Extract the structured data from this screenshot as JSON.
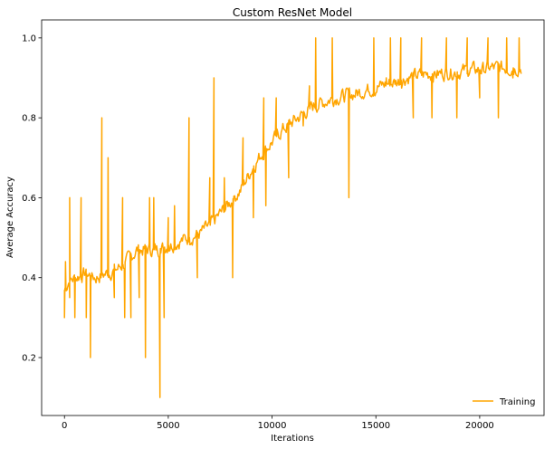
{
  "chart_data": {
    "type": "line",
    "title": "Custom ResNet Model",
    "xlabel": "Iterations",
    "ylabel": "Average Accuracy",
    "xlim": [
      -1100,
      23100
    ],
    "ylim": [
      0.055,
      1.045
    ],
    "xticks": [
      0,
      5000,
      10000,
      15000,
      20000
    ],
    "yticks": [
      0.2,
      0.4,
      0.6,
      0.8,
      1.0
    ],
    "xtick_labels": [
      "0",
      "5000",
      "10000",
      "15000",
      "20000"
    ],
    "ytick_labels": [
      "0.2",
      "0.4",
      "0.6",
      "0.8",
      "1.0"
    ],
    "grid": false,
    "legend_position": "bottom-right",
    "series": [
      {
        "name": "Training",
        "color": "#ffa500",
        "baseline": [
          [
            0,
            0.37
          ],
          [
            200,
            0.39
          ],
          [
            500,
            0.4
          ],
          [
            1000,
            0.41
          ],
          [
            1500,
            0.4
          ],
          [
            2000,
            0.41
          ],
          [
            2500,
            0.42
          ],
          [
            3000,
            0.44
          ],
          [
            3500,
            0.47
          ],
          [
            4000,
            0.47
          ],
          [
            4500,
            0.47
          ],
          [
            5000,
            0.48
          ],
          [
            5500,
            0.49
          ],
          [
            6000,
            0.5
          ],
          [
            6500,
            0.51
          ],
          [
            7000,
            0.53
          ],
          [
            7500,
            0.56
          ],
          [
            8000,
            0.59
          ],
          [
            8500,
            0.62
          ],
          [
            9000,
            0.67
          ],
          [
            9500,
            0.71
          ],
          [
            10000,
            0.74
          ],
          [
            10500,
            0.77
          ],
          [
            11000,
            0.79
          ],
          [
            11500,
            0.81
          ],
          [
            12000,
            0.83
          ],
          [
            12500,
            0.84
          ],
          [
            13000,
            0.85
          ],
          [
            13500,
            0.855
          ],
          [
            14000,
            0.86
          ],
          [
            14500,
            0.87
          ],
          [
            15000,
            0.875
          ],
          [
            15500,
            0.885
          ],
          [
            16000,
            0.89
          ],
          [
            16500,
            0.9
          ],
          [
            17000,
            0.905
          ],
          [
            17500,
            0.91
          ],
          [
            18000,
            0.91
          ],
          [
            18500,
            0.915
          ],
          [
            19000,
            0.915
          ],
          [
            19500,
            0.92
          ],
          [
            20000,
            0.92
          ],
          [
            20500,
            0.925
          ],
          [
            21000,
            0.925
          ],
          [
            21500,
            0.925
          ],
          [
            22000,
            0.925
          ]
        ],
        "spikes": [
          [
            0,
            0.3
          ],
          [
            50,
            0.44
          ],
          [
            250,
            0.6
          ],
          [
            250,
            0.35
          ],
          [
            500,
            0.3
          ],
          [
            800,
            0.6
          ],
          [
            1050,
            0.3
          ],
          [
            1250,
            0.2
          ],
          [
            1800,
            0.8
          ],
          [
            2100,
            0.7
          ],
          [
            2400,
            0.35
          ],
          [
            2800,
            0.6
          ],
          [
            2900,
            0.3
          ],
          [
            3200,
            0.3
          ],
          [
            3600,
            0.35
          ],
          [
            3900,
            0.2
          ],
          [
            4100,
            0.6
          ],
          [
            4300,
            0.6
          ],
          [
            4600,
            0.1
          ],
          [
            4800,
            0.3
          ],
          [
            5000,
            0.55
          ],
          [
            5300,
            0.58
          ],
          [
            6000,
            0.8
          ],
          [
            6400,
            0.4
          ],
          [
            7000,
            0.65
          ],
          [
            7200,
            0.9
          ],
          [
            7700,
            0.65
          ],
          [
            8100,
            0.4
          ],
          [
            8600,
            0.75
          ],
          [
            9100,
            0.55
          ],
          [
            9600,
            0.85
          ],
          [
            9700,
            0.58
          ],
          [
            10200,
            0.85
          ],
          [
            10800,
            0.65
          ],
          [
            11500,
            0.78
          ],
          [
            11800,
            0.88
          ],
          [
            12100,
            1.0
          ],
          [
            12900,
            1.0
          ],
          [
            13700,
            0.6
          ],
          [
            14900,
            1.0
          ],
          [
            15500,
            0.9
          ],
          [
            15700,
            1.0
          ],
          [
            16200,
            1.0
          ],
          [
            16800,
            0.8
          ],
          [
            17200,
            1.0
          ],
          [
            17700,
            0.8
          ],
          [
            18400,
            1.0
          ],
          [
            18900,
            0.8
          ],
          [
            19400,
            1.0
          ],
          [
            20000,
            0.85
          ],
          [
            20400,
            1.0
          ],
          [
            20900,
            0.8
          ],
          [
            21300,
            1.0
          ],
          [
            21600,
            0.9
          ],
          [
            21900,
            1.0
          ]
        ]
      }
    ]
  }
}
